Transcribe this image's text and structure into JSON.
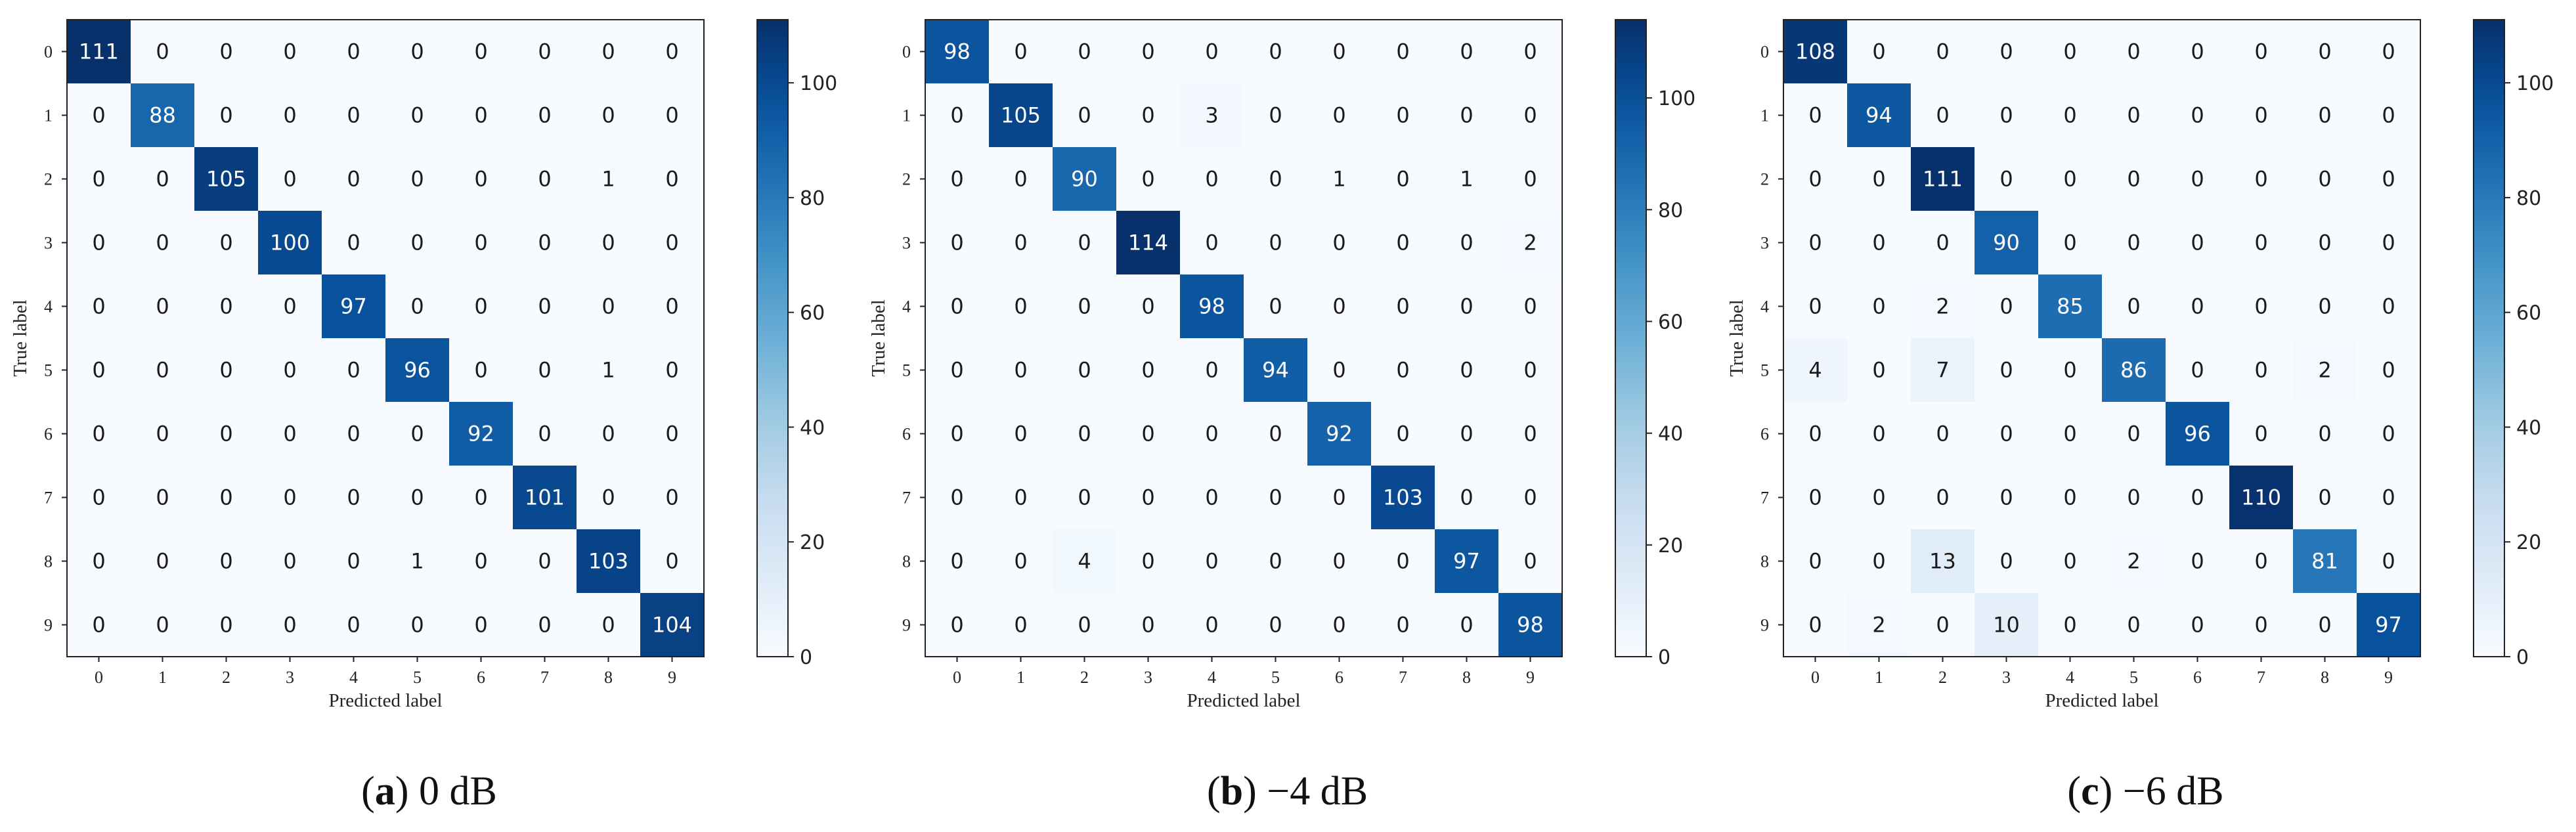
{
  "chart_data": [
    {
      "type": "heatmap",
      "caption_letter": "a",
      "caption_text": " 0 dB",
      "xlabel": "Predicted label",
      "ylabel": "True label",
      "x_ticks": [
        "0",
        "1",
        "2",
        "3",
        "4",
        "5",
        "6",
        "7",
        "8",
        "9"
      ],
      "y_ticks": [
        "0",
        "1",
        "2",
        "3",
        "4",
        "5",
        "6",
        "7",
        "8",
        "9"
      ],
      "colorbar_ticks": [
        0,
        20,
        40,
        60,
        80,
        100
      ],
      "colorbar_range": [
        0,
        111
      ],
      "colormap": "Blues",
      "matrix": [
        [
          111,
          0,
          0,
          0,
          0,
          0,
          0,
          0,
          0,
          0
        ],
        [
          0,
          88,
          0,
          0,
          0,
          0,
          0,
          0,
          0,
          0
        ],
        [
          0,
          0,
          105,
          0,
          0,
          0,
          0,
          0,
          1,
          0
        ],
        [
          0,
          0,
          0,
          100,
          0,
          0,
          0,
          0,
          0,
          0
        ],
        [
          0,
          0,
          0,
          0,
          97,
          0,
          0,
          0,
          0,
          0
        ],
        [
          0,
          0,
          0,
          0,
          0,
          96,
          0,
          0,
          1,
          0
        ],
        [
          0,
          0,
          0,
          0,
          0,
          0,
          92,
          0,
          0,
          0
        ],
        [
          0,
          0,
          0,
          0,
          0,
          0,
          0,
          101,
          0,
          0
        ],
        [
          0,
          0,
          0,
          0,
          0,
          1,
          0,
          0,
          103,
          0
        ],
        [
          0,
          0,
          0,
          0,
          0,
          0,
          0,
          0,
          0,
          104
        ]
      ]
    },
    {
      "type": "heatmap",
      "caption_letter": "b",
      "caption_text": " −4 dB",
      "xlabel": "Predicted label",
      "ylabel": "True label",
      "x_ticks": [
        "0",
        "1",
        "2",
        "3",
        "4",
        "5",
        "6",
        "7",
        "8",
        "9"
      ],
      "y_ticks": [
        "0",
        "1",
        "2",
        "3",
        "4",
        "5",
        "6",
        "7",
        "8",
        "9"
      ],
      "colorbar_ticks": [
        0,
        20,
        40,
        60,
        80,
        100
      ],
      "colorbar_range": [
        0,
        114
      ],
      "colormap": "Blues",
      "matrix": [
        [
          98,
          0,
          0,
          0,
          0,
          0,
          0,
          0,
          0,
          0
        ],
        [
          0,
          105,
          0,
          0,
          3,
          0,
          0,
          0,
          0,
          0
        ],
        [
          0,
          0,
          90,
          0,
          0,
          0,
          1,
          0,
          1,
          0
        ],
        [
          0,
          0,
          0,
          114,
          0,
          0,
          0,
          0,
          0,
          2
        ],
        [
          0,
          0,
          0,
          0,
          98,
          0,
          0,
          0,
          0,
          0
        ],
        [
          0,
          0,
          0,
          0,
          0,
          94,
          0,
          0,
          0,
          0
        ],
        [
          0,
          0,
          0,
          0,
          0,
          0,
          92,
          0,
          0,
          0
        ],
        [
          0,
          0,
          0,
          0,
          0,
          0,
          0,
          103,
          0,
          0
        ],
        [
          0,
          0,
          4,
          0,
          0,
          0,
          0,
          0,
          97,
          0
        ],
        [
          0,
          0,
          0,
          0,
          0,
          0,
          0,
          0,
          0,
          98
        ]
      ]
    },
    {
      "type": "heatmap",
      "caption_letter": "c",
      "caption_text": " −6 dB",
      "xlabel": "Predicted label",
      "ylabel": "True label",
      "x_ticks": [
        "0",
        "1",
        "2",
        "3",
        "4",
        "5",
        "6",
        "7",
        "8",
        "9"
      ],
      "y_ticks": [
        "0",
        "1",
        "2",
        "3",
        "4",
        "5",
        "6",
        "7",
        "8",
        "9"
      ],
      "colorbar_ticks": [
        0,
        20,
        40,
        60,
        80,
        100
      ],
      "colorbar_range": [
        0,
        111
      ],
      "colormap": "Blues",
      "matrix": [
        [
          108,
          0,
          0,
          0,
          0,
          0,
          0,
          0,
          0,
          0
        ],
        [
          0,
          94,
          0,
          0,
          0,
          0,
          0,
          0,
          0,
          0
        ],
        [
          0,
          0,
          111,
          0,
          0,
          0,
          0,
          0,
          0,
          0
        ],
        [
          0,
          0,
          0,
          90,
          0,
          0,
          0,
          0,
          0,
          0
        ],
        [
          0,
          0,
          2,
          0,
          85,
          0,
          0,
          0,
          0,
          0
        ],
        [
          4,
          0,
          7,
          0,
          0,
          86,
          0,
          0,
          2,
          0
        ],
        [
          0,
          0,
          0,
          0,
          0,
          0,
          96,
          0,
          0,
          0
        ],
        [
          0,
          0,
          0,
          0,
          0,
          0,
          0,
          110,
          0,
          0
        ],
        [
          0,
          0,
          13,
          0,
          0,
          2,
          0,
          0,
          81,
          0
        ],
        [
          0,
          2,
          0,
          10,
          0,
          0,
          0,
          0,
          0,
          97
        ]
      ]
    }
  ]
}
